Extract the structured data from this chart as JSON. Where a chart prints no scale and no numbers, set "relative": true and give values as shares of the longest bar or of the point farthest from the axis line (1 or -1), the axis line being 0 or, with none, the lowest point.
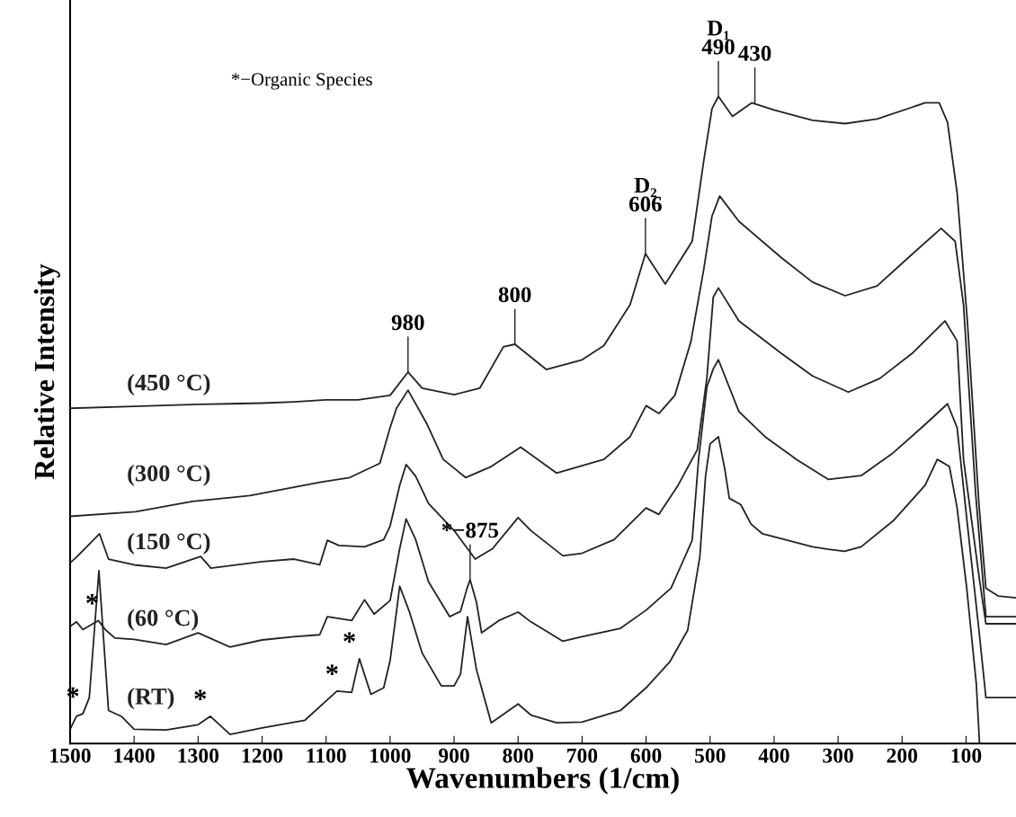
{
  "chart_data": {
    "type": "line",
    "relative": true,
    "xlabel": "Wavenumbers (1/cm)",
    "ylabel": "Relative Intensity",
    "xlim": [
      1500,
      22
    ],
    "xticks": [
      1500,
      1400,
      1300,
      1200,
      1100,
      1000,
      900,
      800,
      700,
      600,
      500,
      400,
      300,
      200,
      100
    ],
    "grid": false,
    "legend": false,
    "marker": "none",
    "line_style": "solid",
    "series": [
      {
        "name": "(450 °C)",
        "color": "#222222",
        "x": [
          1500,
          1400,
          1300,
          1200,
          1150,
          1100,
          1050,
          1000,
          972,
          950,
          900,
          860,
          823,
          805,
          756,
          700,
          666,
          625,
          601,
          570,
          528,
          510,
          497,
          487,
          465,
          435,
          400,
          340,
          289,
          239,
          164,
          142,
          129,
          114,
          98,
          80,
          69,
          50,
          22
        ],
        "values": [
          0.518,
          0.521,
          0.524,
          0.526,
          0.528,
          0.531,
          0.531,
          0.538,
          0.574,
          0.549,
          0.539,
          0.549,
          0.613,
          0.617,
          0.578,
          0.593,
          0.615,
          0.678,
          0.757,
          0.71,
          0.776,
          0.9,
          0.981,
          1.0,
          0.969,
          0.99,
          0.979,
          0.963,
          0.958,
          0.965,
          0.99,
          0.99,
          0.96,
          0.851,
          0.653,
          0.371,
          0.24,
          0.228,
          0.225
        ]
      },
      {
        "name": "(300 °C)",
        "color": "#222222",
        "x": [
          1500,
          1398,
          1309,
          1219,
          1108,
          1063,
          1016,
          1000,
          990,
          972,
          942,
          917,
          882,
          842,
          796,
          740,
          666,
          625,
          600,
          580,
          555,
          530,
          510,
          497,
          485,
          455,
          389,
          340,
          289,
          239,
          190,
          139,
          117,
          104,
          85,
          69,
          22
        ],
        "values": [
          0.351,
          0.358,
          0.374,
          0.383,
          0.404,
          0.411,
          0.433,
          0.488,
          0.518,
          0.546,
          0.493,
          0.439,
          0.411,
          0.428,
          0.458,
          0.418,
          0.439,
          0.474,
          0.522,
          0.51,
          0.538,
          0.621,
          0.732,
          0.815,
          0.846,
          0.807,
          0.751,
          0.713,
          0.692,
          0.707,
          0.751,
          0.796,
          0.776,
          0.678,
          0.385,
          0.196,
          0.196
        ]
      },
      {
        "name": "(150 °C)",
        "color": "#222222",
        "x": [
          1500,
          1490,
          1454,
          1440,
          1400,
          1350,
          1296,
          1280,
          1200,
          1150,
          1110,
          1098,
          1080,
          1040,
          1010,
          1000,
          985,
          975,
          960,
          940,
          900,
          867,
          840,
          800,
          780,
          730,
          700,
          650,
          600,
          580,
          550,
          520,
          505,
          495,
          487,
          455,
          389,
          340,
          284,
          235,
          184,
          133,
          114,
          104,
          80,
          69,
          22
        ],
        "values": [
          0.279,
          0.288,
          0.324,
          0.285,
          0.276,
          0.271,
          0.289,
          0.271,
          0.281,
          0.285,
          0.276,
          0.314,
          0.306,
          0.304,
          0.315,
          0.336,
          0.399,
          0.431,
          0.413,
          0.371,
          0.329,
          0.285,
          0.301,
          0.349,
          0.329,
          0.29,
          0.294,
          0.315,
          0.364,
          0.354,
          0.399,
          0.454,
          0.565,
          0.69,
          0.704,
          0.653,
          0.603,
          0.568,
          0.543,
          0.564,
          0.603,
          0.653,
          0.622,
          0.439,
          0.26,
          0.185,
          0.185
        ]
      },
      {
        "name": "(60 °C)",
        "color": "#222222",
        "x": [
          1500,
          1490,
          1480,
          1456,
          1445,
          1430,
          1400,
          1350,
          1300,
          1250,
          1200,
          1150,
          1110,
          1098,
          1060,
          1040,
          1025,
          1000,
          985,
          975,
          960,
          940,
          907,
          890,
          880,
          875,
          865,
          857,
          830,
          800,
          780,
          730,
          700,
          640,
          600,
          561,
          528,
          518,
          505,
          495,
          487,
          455,
          414,
          365,
          315,
          264,
          214,
          164,
          129,
          114,
          98,
          80,
          69,
          22
        ],
        "values": [
          0.181,
          0.188,
          0.176,
          0.19,
          0.176,
          0.163,
          0.161,
          0.153,
          0.171,
          0.149,
          0.16,
          0.165,
          0.168,
          0.196,
          0.19,
          0.222,
          0.2,
          0.221,
          0.301,
          0.347,
          0.315,
          0.25,
          0.196,
          0.204,
          0.239,
          0.253,
          0.218,
          0.171,
          0.19,
          0.203,
          0.188,
          0.158,
          0.165,
          0.178,
          0.206,
          0.24,
          0.314,
          0.439,
          0.551,
          0.579,
          0.593,
          0.513,
          0.474,
          0.439,
          0.408,
          0.414,
          0.449,
          0.493,
          0.525,
          0.488,
          0.339,
          0.176,
          0.071,
          0.071
        ]
      },
      {
        "name": "(RT)",
        "color": "#222222",
        "x": [
          1500,
          1490,
          1480,
          1470,
          1455,
          1440,
          1420,
          1400,
          1350,
          1300,
          1281,
          1250,
          1200,
          1133,
          1083,
          1060,
          1048,
          1030,
          1010,
          1000,
          990,
          985,
          970,
          950,
          920,
          900,
          890,
          879,
          865,
          842,
          800,
          780,
          740,
          700,
          640,
          600,
          563,
          535,
          516,
          507,
          500,
          487,
          477,
          470,
          452,
          436,
          418,
          340,
          315,
          290,
          264,
          214,
          164,
          145,
          126,
          114,
          99,
          84,
          79
        ],
        "values": [
          0.022,
          0.042,
          0.046,
          0.071,
          0.267,
          0.051,
          0.042,
          0.022,
          0.021,
          0.029,
          0.042,
          0.014,
          0.024,
          0.036,
          0.081,
          0.079,
          0.131,
          0.076,
          0.086,
          0.128,
          0.204,
          0.243,
          0.204,
          0.14,
          0.089,
          0.089,
          0.107,
          0.196,
          0.114,
          0.032,
          0.061,
          0.044,
          0.032,
          0.033,
          0.051,
          0.086,
          0.126,
          0.175,
          0.289,
          0.414,
          0.463,
          0.474,
          0.424,
          0.379,
          0.369,
          0.339,
          0.324,
          0.304,
          0.3,
          0.297,
          0.304,
          0.344,
          0.399,
          0.439,
          0.428,
          0.364,
          0.24,
          0.092,
          0.0
        ]
      }
    ],
    "annotations": [
      "*−Organic Species",
      {
        "text": "980",
        "x": 972,
        "y": 0.574
      },
      {
        "text": "800",
        "x": 805,
        "y": 0.617
      },
      {
        "text": "D₂\n606",
        "x": 601,
        "y": 0.757
      },
      {
        "text": "D₁\n490",
        "x": 487,
        "y": 1.0
      },
      {
        "text": "430",
        "x": 430,
        "y": 0.99
      },
      {
        "text": "*−875",
        "x": 875,
        "y": 0.253
      },
      {
        "text": "*",
        "x": 1480,
        "y": 0.046
      },
      {
        "text": "*",
        "x": 1450,
        "y": 0.19
      },
      {
        "text": "*",
        "x": 1281,
        "y": 0.042
      },
      {
        "text": "*",
        "x": 1075,
        "y": 0.081
      },
      {
        "text": "*",
        "x": 1048,
        "y": 0.131
      }
    ]
  }
}
